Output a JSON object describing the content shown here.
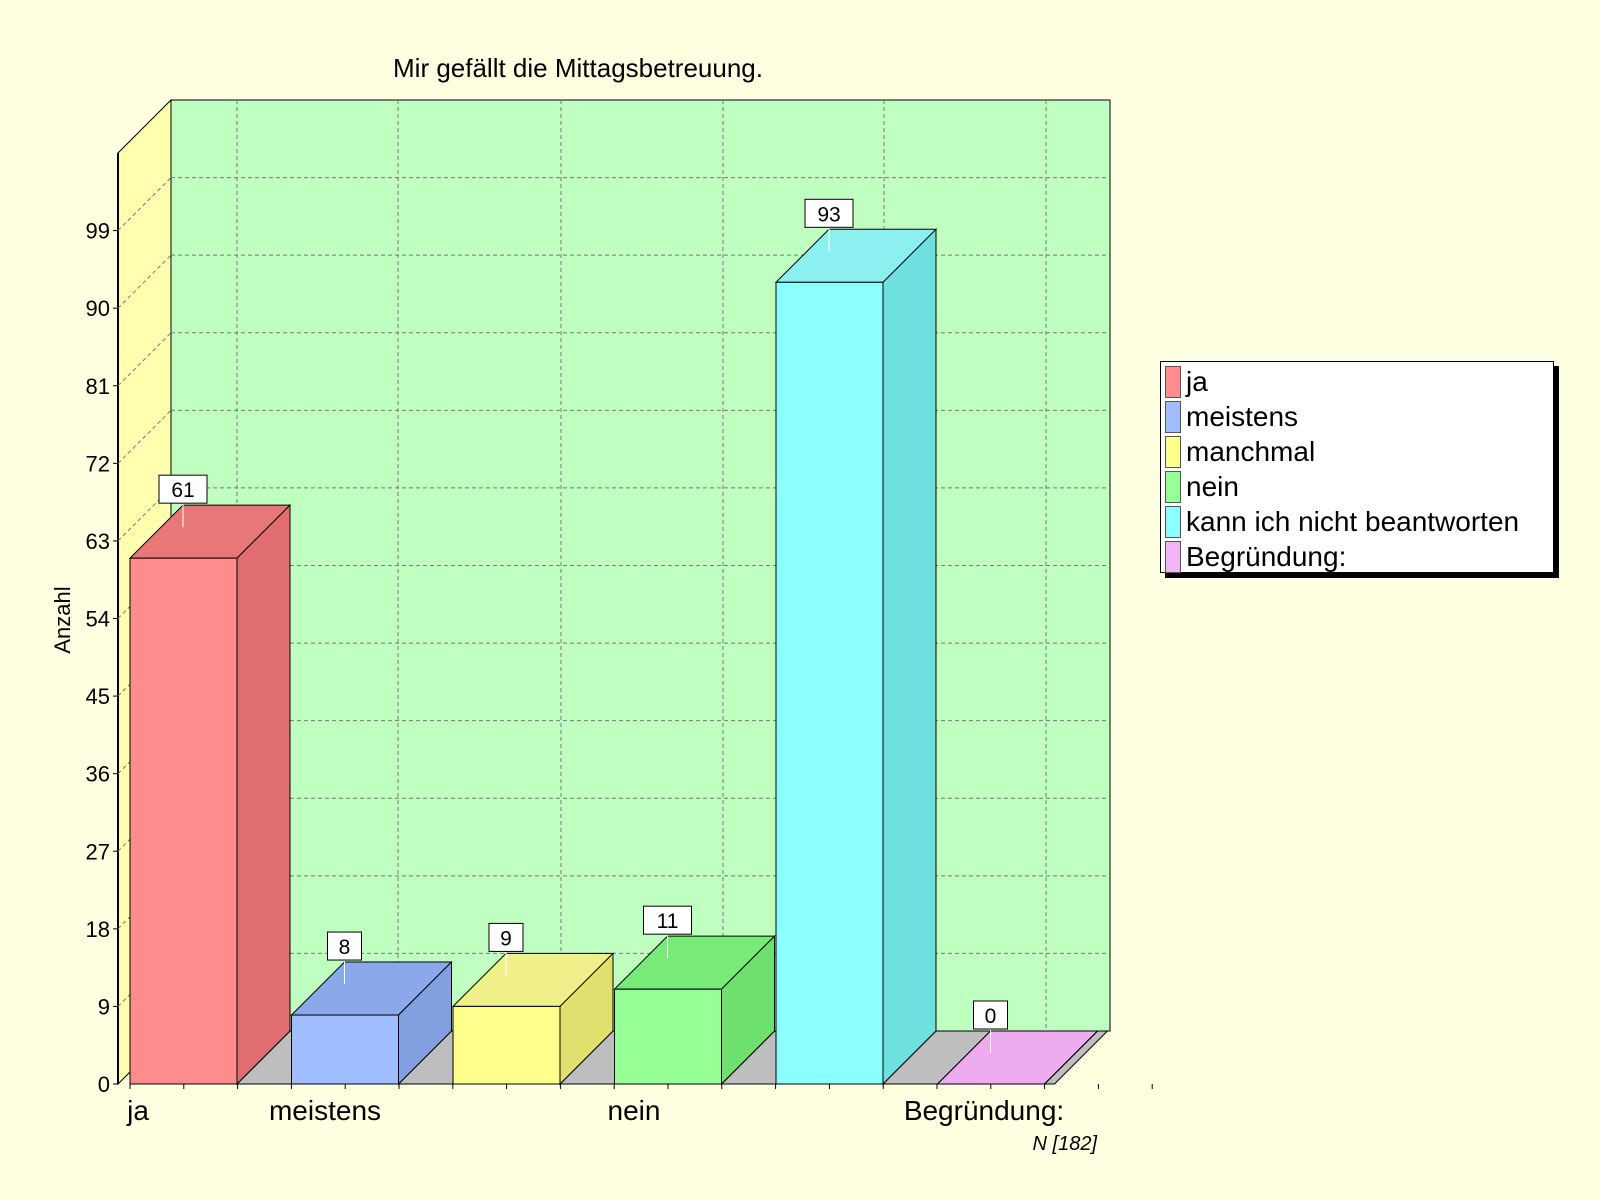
{
  "chart_data": {
    "type": "bar",
    "title": "Mir gefällt die Mittagsbetreuung.",
    "ylabel": "Anzahl",
    "xlabel": "",
    "categories": [
      "ja",
      "meistens",
      "manchmal",
      "nein",
      "kann ich nicht beantworten",
      "Begründung:"
    ],
    "visible_x_tick_labels": [
      "ja",
      "meistens",
      "nein",
      "Begründung:"
    ],
    "values": [
      61,
      8,
      9,
      11,
      93,
      0
    ],
    "data_labels": [
      "61",
      "8",
      "9",
      "11",
      "93",
      "0"
    ],
    "ylim": [
      0,
      108
    ],
    "yticks": [
      0,
      9,
      18,
      27,
      36,
      45,
      54,
      63,
      72,
      81,
      90,
      99
    ],
    "grid": true,
    "legend_position": "right",
    "note": "N [182]",
    "colors": {
      "front": [
        "#FF8C8C",
        "#A0BEFF",
        "#FFFF8C",
        "#96FF96",
        "#8CFFFF",
        "#F3B5F3"
      ],
      "side": [
        "#E06E6E",
        "#82A0E0",
        "#E0E06E",
        "#6EE06E",
        "#6EE0E0",
        "#D797D7"
      ],
      "top": [
        "#E87878",
        "#8AA8EA",
        "#F0F08A",
        "#78EA78",
        "#8CF0F0",
        "#EFABEF"
      ],
      "wall": "#BFFFBF",
      "side_wall": "#FFFFB0",
      "floor": "#BEBEBE",
      "background": "#FFFFE1"
    }
  },
  "legend": {
    "items": [
      {
        "label": "ja",
        "color": "#FF8C8C"
      },
      {
        "label": "meistens",
        "color": "#A0BEFF"
      },
      {
        "label": "manchmal",
        "color": "#FFFF8C"
      },
      {
        "label": "nein",
        "color": "#96FF96"
      },
      {
        "label": "kann ich nicht beantworten",
        "color": "#8CFFFF"
      },
      {
        "label": "Begründung:",
        "color": "#F3B5F3"
      }
    ]
  }
}
